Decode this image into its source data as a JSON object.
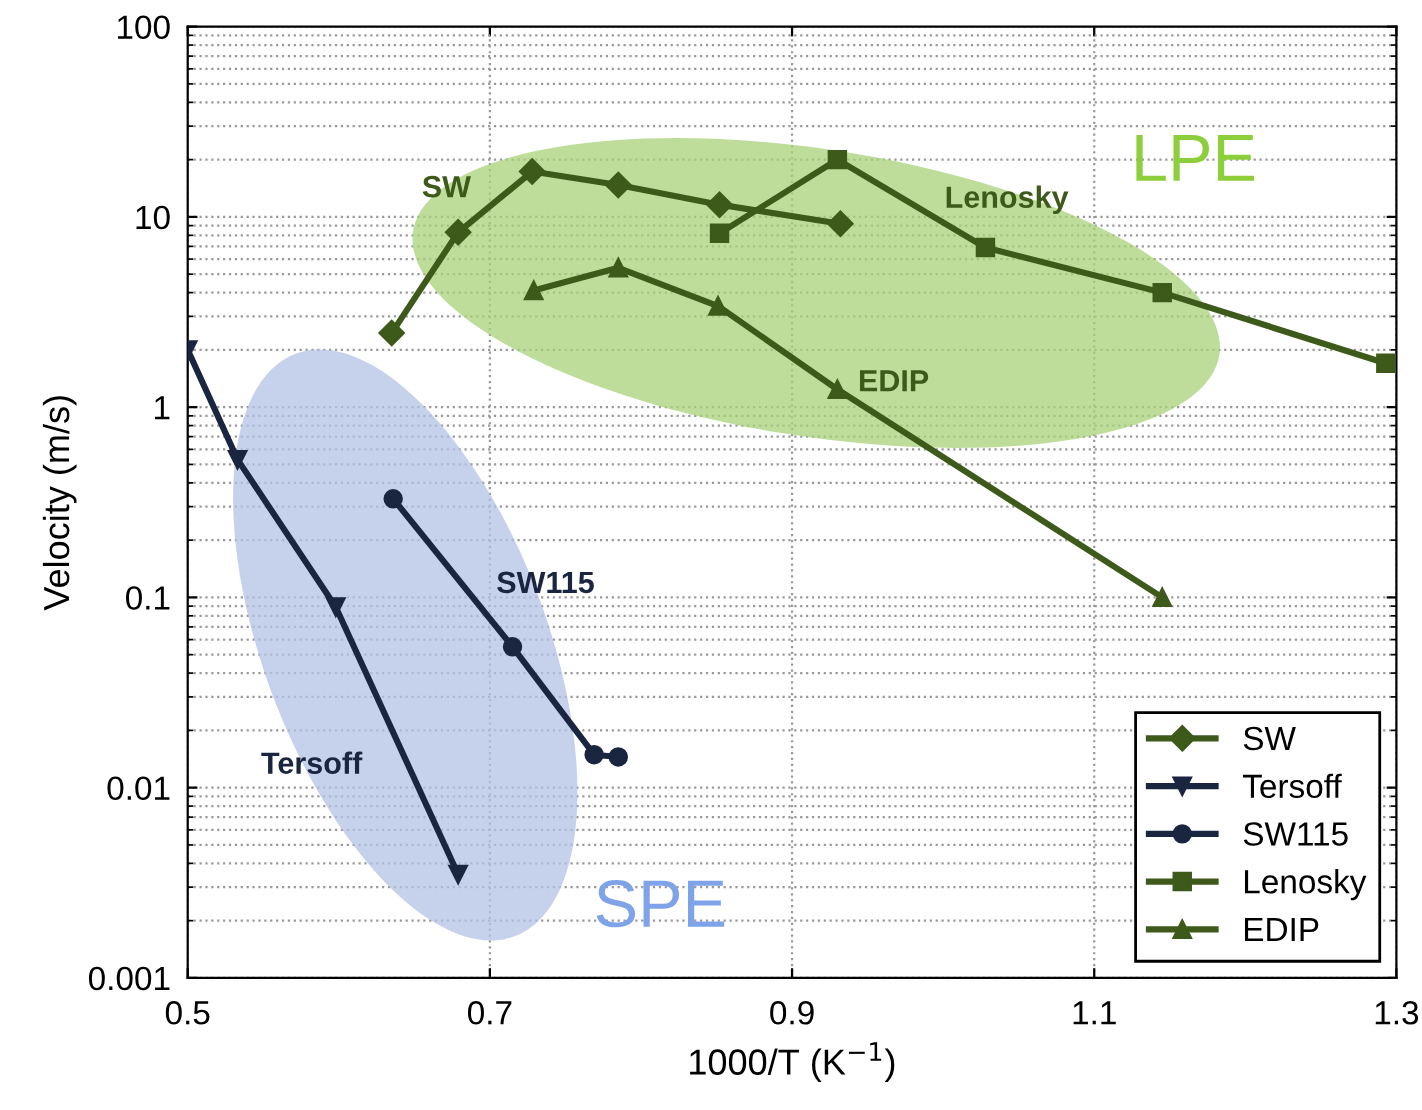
{
  "chart_data": {
    "type": "line",
    "xlabel": "1000/T (K$^{−1}$)",
    "ylabel": "Velocity (m/s)",
    "log": "y",
    "xlim": [
      0.5,
      1.3
    ],
    "ylim": [
      0.001,
      100
    ],
    "xticks": [
      0.5,
      0.7,
      0.9,
      1.1,
      1.3
    ],
    "yticks": [
      {
        "value": 0.001,
        "label": "0.001"
      },
      {
        "value": 0.01,
        "label": "0.01"
      },
      {
        "value": 0.1,
        "label": "0.1"
      },
      {
        "value": 1,
        "label": "1"
      },
      {
        "value": 10,
        "label": "10"
      },
      {
        "value": 100,
        "label": "100"
      }
    ],
    "grid": true,
    "legend": "bottom right",
    "line_style": "solid",
    "series": [
      {
        "name": "SW",
        "color": "#3d5a1a",
        "marker": "diamond",
        "x": [
          0.635,
          0.679,
          0.728,
          0.785,
          0.852,
          0.932
        ],
        "values": [
          2.45,
          8.3,
          17.3,
          14.7,
          11.6,
          9.2
        ]
      },
      {
        "name": "Tersoff",
        "color": "#1a2540",
        "marker": "triangle_down",
        "x": [
          0.5,
          0.533,
          0.598,
          0.679
        ],
        "values": [
          2.0,
          0.53,
          0.089,
          0.0035
        ]
      },
      {
        "name": "SW115",
        "color": "#1a2540",
        "marker": "circle",
        "x": [
          0.636,
          0.715,
          0.769,
          0.785
        ],
        "values": [
          0.33,
          0.055,
          0.0149,
          0.0145
        ]
      },
      {
        "name": "Lenosky",
        "color": "#3d5a1a",
        "marker": "square",
        "x": [
          0.852,
          0.93,
          1.028,
          1.145,
          1.293
        ],
        "values": [
          8.2,
          20,
          6.9,
          4.0,
          1.7
        ]
      },
      {
        "name": "EDIP",
        "color": "#3d5a1a",
        "marker": "triangle",
        "x": [
          0.729,
          0.785,
          0.851,
          0.93,
          1.145
        ],
        "values": [
          4.1,
          5.4,
          3.4,
          1.24,
          0.1
        ]
      }
    ],
    "annotations": [
      "SW",
      "Lenosky",
      "EDIP",
      "SW115",
      "Tersoff",
      "LPE",
      "SPE"
    ]
  }
}
